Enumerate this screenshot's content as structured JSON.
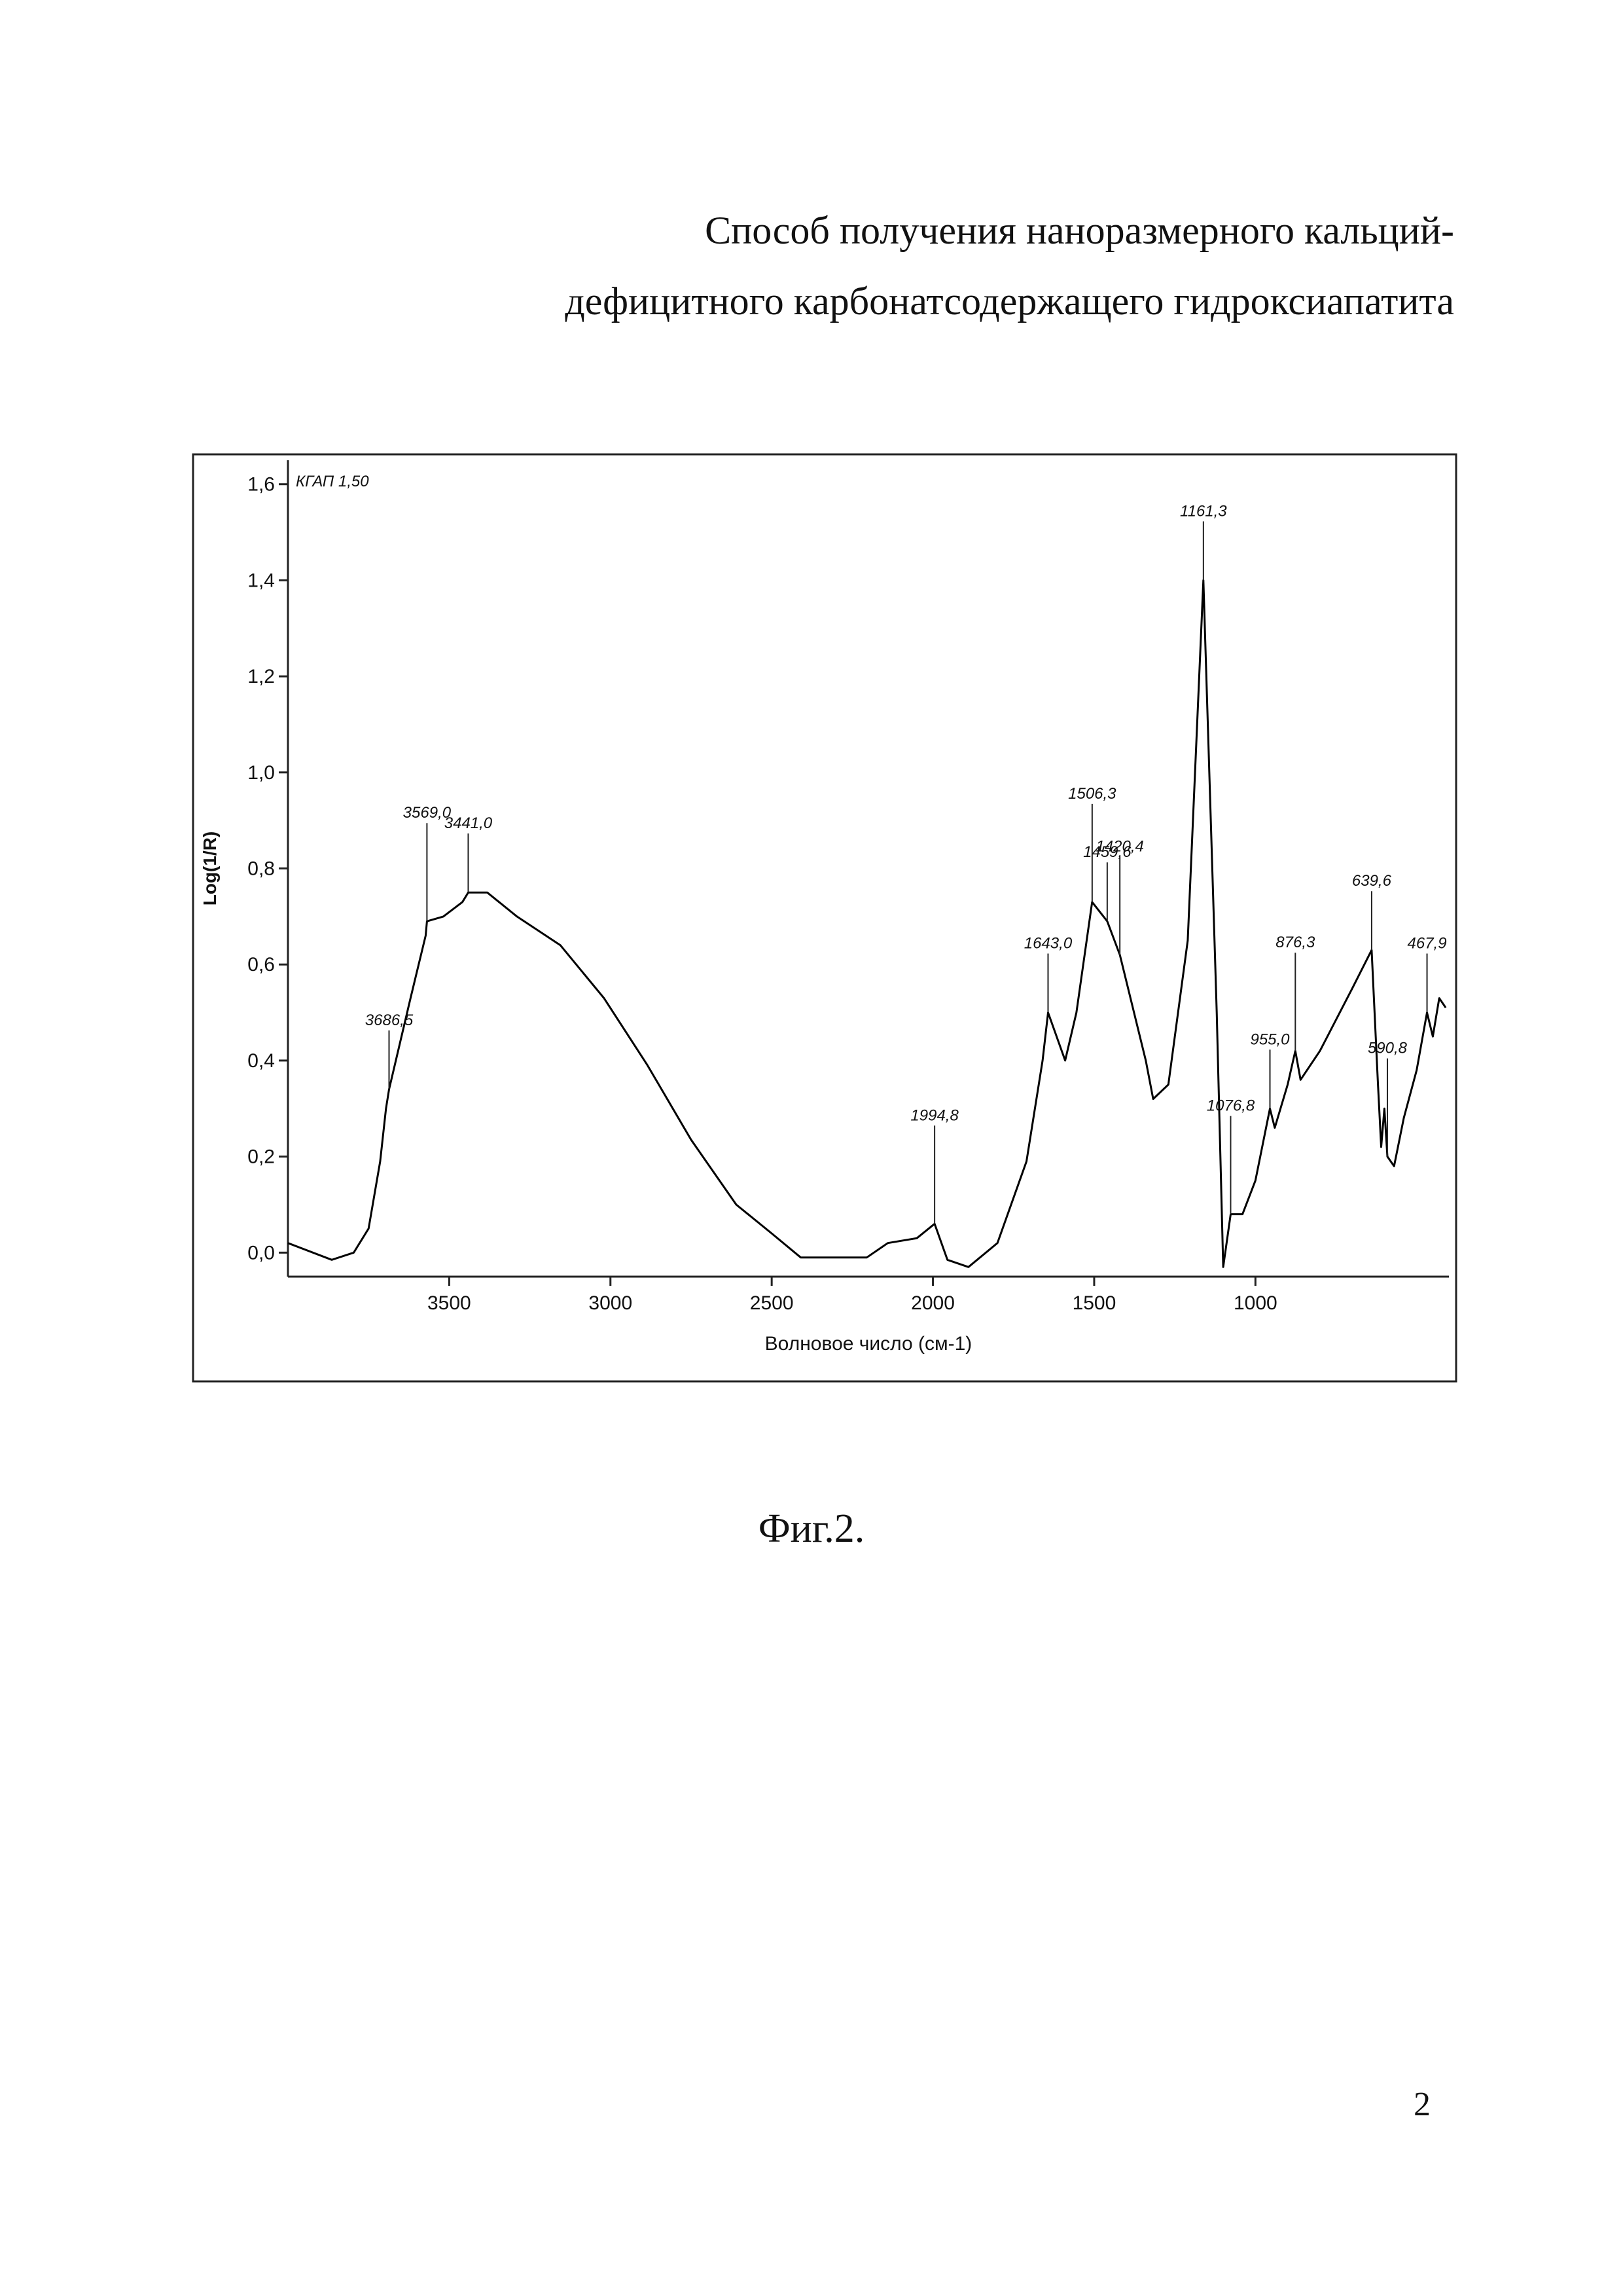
{
  "header": {
    "title_lines": [
      "Способ получения наноразмерного кальций-",
      "дефицитного карбонатсодержащего гидроксиапатита"
    ]
  },
  "chart_data": {
    "type": "line",
    "x_label": "Волновое число (см-1)",
    "y_label": "Log(1/R)",
    "xlim": [
      4000,
      400
    ],
    "ylim": [
      -0.05,
      1.65
    ],
    "xticks": [
      3500,
      3000,
      2500,
      2000,
      1500,
      1000
    ],
    "yticks": [
      {
        "value": 0,
        "label": "0,0"
      },
      {
        "value": 0.2,
        "label": "0,2"
      },
      {
        "value": 0.4,
        "label": "0,4"
      },
      {
        "value": 0.6,
        "label": "0,6"
      },
      {
        "value": 0.8,
        "label": "0,8"
      },
      {
        "value": 1.0,
        "label": "1,0"
      },
      {
        "value": 1.2,
        "label": "1,2"
      },
      {
        "value": 1.4,
        "label": "1,4"
      },
      {
        "value": 1.6,
        "label": "1,6"
      }
    ],
    "x": [
      4000,
      3864,
      3796,
      3750,
      3714,
      3696,
      3686.5,
      3620,
      3573,
      3569,
      3518,
      3459,
      3441,
      3382,
      3290,
      3155,
      3020,
      2885,
      2750,
      2610,
      2500,
      2410,
      2205,
      2140,
      2050,
      1994.8,
      1955,
      1890,
      1800,
      1710,
      1660,
      1643,
      1590,
      1555,
      1506.3,
      1459.6,
      1420.4,
      1340,
      1317,
      1270,
      1210,
      1161.3,
      1120,
      1100,
      1076.8,
      1040,
      1000,
      970,
      955,
      940,
      900,
      876.3,
      860,
      800,
      700,
      639.6,
      620,
      610,
      600,
      590.8,
      570,
      540,
      500,
      467.9,
      450,
      430,
      410
    ],
    "series": [
      {
        "name": "КГАП 1,50",
        "color": "#000000",
        "values": [
          0.02,
          -0.015,
          0,
          0.05,
          0.19,
          0.3,
          0.34,
          0.53,
          0.66,
          0.69,
          0.7,
          0.73,
          0.75,
          0.75,
          0.7,
          0.64,
          0.53,
          0.39,
          0.235,
          0.1,
          0.04,
          -0.01,
          -0.01,
          0.02,
          0.03,
          0.06,
          -0.015,
          -0.03,
          0.02,
          0.19,
          0.4,
          0.5,
          0.4,
          0.5,
          0.73,
          0.69,
          0.62,
          0.4,
          0.32,
          0.35,
          0.65,
          1.4,
          0.5,
          -0.03,
          0.08,
          0.08,
          0.15,
          0.25,
          0.3,
          0.26,
          0.35,
          0.42,
          0.36,
          0.42,
          0.55,
          0.63,
          0.35,
          0.22,
          0.3,
          0.2,
          0.18,
          0.28,
          0.38,
          0.5,
          0.45,
          0.53,
          0.51
        ]
      }
    ],
    "peaks": [
      {
        "value": 3686.5,
        "label": "3686,5"
      },
      {
        "value": 3569.0,
        "label": "3569,0"
      },
      {
        "value": 3441.0,
        "label": "3441,0"
      },
      {
        "value": 1994.8,
        "label": "1994,8"
      },
      {
        "value": 1643.0,
        "label": "1643,0"
      },
      {
        "value": 1506.3,
        "label": "1506,3"
      },
      {
        "value": 1459.6,
        "label": "1459,6"
      },
      {
        "value": 1420.4,
        "label": "1420,4"
      },
      {
        "value": 1161.3,
        "label": "1161,3"
      },
      {
        "value": 1076.8,
        "label": "1076,8"
      },
      {
        "value": 955.0,
        "label": "955,0"
      },
      {
        "value": 876.3,
        "label": "876,3"
      },
      {
        "value": 639.6,
        "label": "639,6"
      },
      {
        "value": 590.8,
        "label": "590,8"
      },
      {
        "value": 467.9,
        "label": "467,9"
      }
    ]
  },
  "figure_caption": "Фиг.2.",
  "page_number": "2"
}
